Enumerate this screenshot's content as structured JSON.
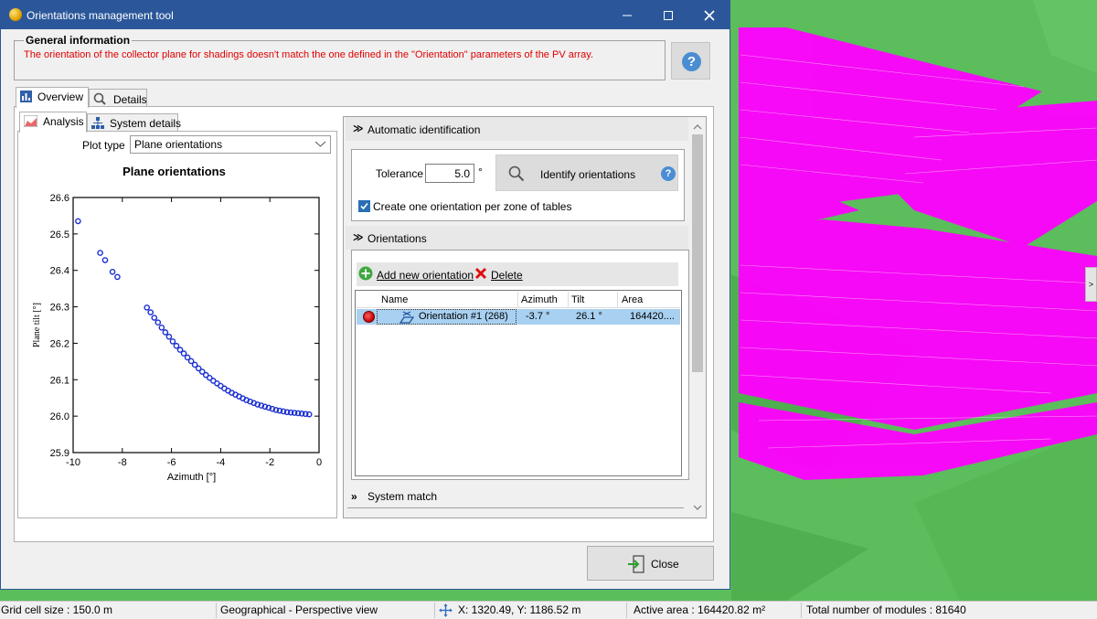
{
  "window": {
    "title": "Orientations management tool"
  },
  "general_info": {
    "heading": "General information",
    "message": "The orientation of the collector plane for shadings doesn't match the one defined in the \"Orientation\" parameters of the PV array."
  },
  "tabs": {
    "overview": "Overview",
    "details": "Details"
  },
  "subtabs": {
    "analysis": "Analysis",
    "system_details": "System details"
  },
  "plot_type": {
    "label": "Plot type",
    "value": "Plane orientations"
  },
  "auto_id": {
    "heading": "Automatic identification",
    "tolerance_label": "Tolerance",
    "tolerance_value": "5.0",
    "tolerance_unit": "°",
    "identify_label": "Identify orientations",
    "per_zone_label": "Create one orientation per zone of tables",
    "per_zone_checked": true
  },
  "orientations": {
    "heading": "Orientations",
    "add_label": "Add new orientation",
    "delete_label": "Delete",
    "columns": [
      "Name",
      "Azimuth",
      "Tilt",
      "Area"
    ],
    "rows": [
      {
        "name": "Orientation #1 (268)",
        "azimuth": "-3.7 °",
        "tilt": "26.1 °",
        "area": "164420...."
      }
    ]
  },
  "system_match": {
    "heading": "System match"
  },
  "close_label": "Close",
  "statusbar": {
    "grid": "Grid cell size : 150.0 m",
    "view": "Geographical - Perspective view",
    "coords": "X: 1320.49, Y: 1186.52 m",
    "active_area": "Active area : 164420.82 m²",
    "modules": "Total number of modules : 81640"
  },
  "side_toggle": ">",
  "colors": {
    "title_bar": "#2b579a",
    "warning_text": "#e00000",
    "selection": "#a8d0f0",
    "point": "#1a2fd0",
    "tables": "#ff00ff",
    "ground": "#5cbd5c"
  },
  "chart_data": {
    "type": "scatter",
    "title": "Plane orientations",
    "xlabel": "Azimuth [°]",
    "ylabel": "Plane tilt [°]",
    "xlim": [
      -10,
      0
    ],
    "ylim": [
      25.9,
      26.6
    ],
    "xticks": [
      -10,
      -8,
      -6,
      -4,
      -2,
      0
    ],
    "yticks": [
      25.9,
      26.0,
      26.1,
      26.2,
      26.3,
      26.4,
      26.5,
      26.6
    ],
    "points": [
      [
        -9.8,
        26.535
      ],
      [
        -8.9,
        26.448
      ],
      [
        -8.7,
        26.428
      ],
      [
        -8.4,
        26.396
      ],
      [
        -8.2,
        26.382
      ],
      [
        -7.0,
        26.298
      ],
      [
        -6.85,
        26.285
      ],
      [
        -6.7,
        26.27
      ],
      [
        -6.55,
        26.257
      ],
      [
        -6.4,
        26.243
      ],
      [
        -6.25,
        26.23
      ],
      [
        -6.1,
        26.218
      ],
      [
        -5.95,
        26.205
      ],
      [
        -5.8,
        26.193
      ],
      [
        -5.65,
        26.182
      ],
      [
        -5.5,
        26.172
      ],
      [
        -5.35,
        26.161
      ],
      [
        -5.2,
        26.151
      ],
      [
        -5.05,
        26.141
      ],
      [
        -4.9,
        26.131
      ],
      [
        -4.75,
        26.122
      ],
      [
        -4.6,
        26.113
      ],
      [
        -4.45,
        26.105
      ],
      [
        -4.3,
        26.097
      ],
      [
        -4.15,
        26.09
      ],
      [
        -4.0,
        26.083
      ],
      [
        -3.85,
        26.076
      ],
      [
        -3.7,
        26.07
      ],
      [
        -3.55,
        26.064
      ],
      [
        -3.4,
        26.059
      ],
      [
        -3.25,
        26.054
      ],
      [
        -3.1,
        26.049
      ],
      [
        -2.95,
        26.044
      ],
      [
        -2.8,
        26.04
      ],
      [
        -2.65,
        26.036
      ],
      [
        -2.5,
        26.032
      ],
      [
        -2.35,
        26.029
      ],
      [
        -2.2,
        26.026
      ],
      [
        -2.05,
        26.023
      ],
      [
        -1.9,
        26.02
      ],
      [
        -1.75,
        26.017
      ],
      [
        -1.6,
        26.015
      ],
      [
        -1.45,
        26.013
      ],
      [
        -1.3,
        26.011
      ],
      [
        -1.15,
        26.01
      ],
      [
        -1.0,
        26.009
      ],
      [
        -0.85,
        26.008
      ],
      [
        -0.7,
        26.007
      ],
      [
        -0.55,
        26.006
      ],
      [
        -0.4,
        26.005
      ]
    ]
  }
}
